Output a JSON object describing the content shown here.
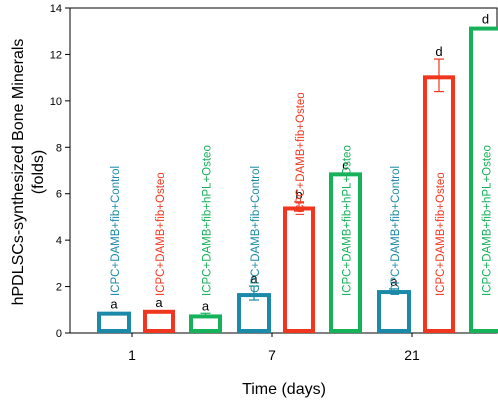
{
  "chart_data": {
    "type": "bar",
    "title": "",
    "xlabel": "Time (days)",
    "ylabel_line1": "hPDLSCs-synthesized Bone Minerals",
    "ylabel_line2": "(folds)",
    "ylim": [
      0,
      14
    ],
    "yticks": [
      "0",
      "2",
      "4",
      "6",
      "8",
      "10",
      "12",
      "14"
    ],
    "categories": [
      "1",
      "7",
      "21"
    ],
    "grid": false,
    "series": [
      {
        "name": "ICPC+DAMB+fib+Control",
        "color": "#1a8aa8",
        "values": [
          0.92,
          1.72,
          1.85
        ],
        "errors": [
          0.0,
          0.3,
          0.05
        ],
        "letters": [
          "a",
          "a",
          "a"
        ]
      },
      {
        "name": "ICPC+DAMB+fib+Osteo",
        "color": "#f0361e",
        "values": [
          1.0,
          5.45,
          11.1
        ],
        "errors": [
          0.0,
          0.2,
          0.7
        ],
        "letters": [
          "a",
          "b",
          "d"
        ]
      },
      {
        "name": "ICPC+DAMB+fib+hPL+Osteo",
        "color": "#16b25a",
        "values": [
          0.8,
          6.92,
          13.2
        ],
        "errors": [
          0.05,
          0.0,
          0.0
        ],
        "letters": [
          "a",
          "c",
          "d"
        ]
      }
    ]
  }
}
